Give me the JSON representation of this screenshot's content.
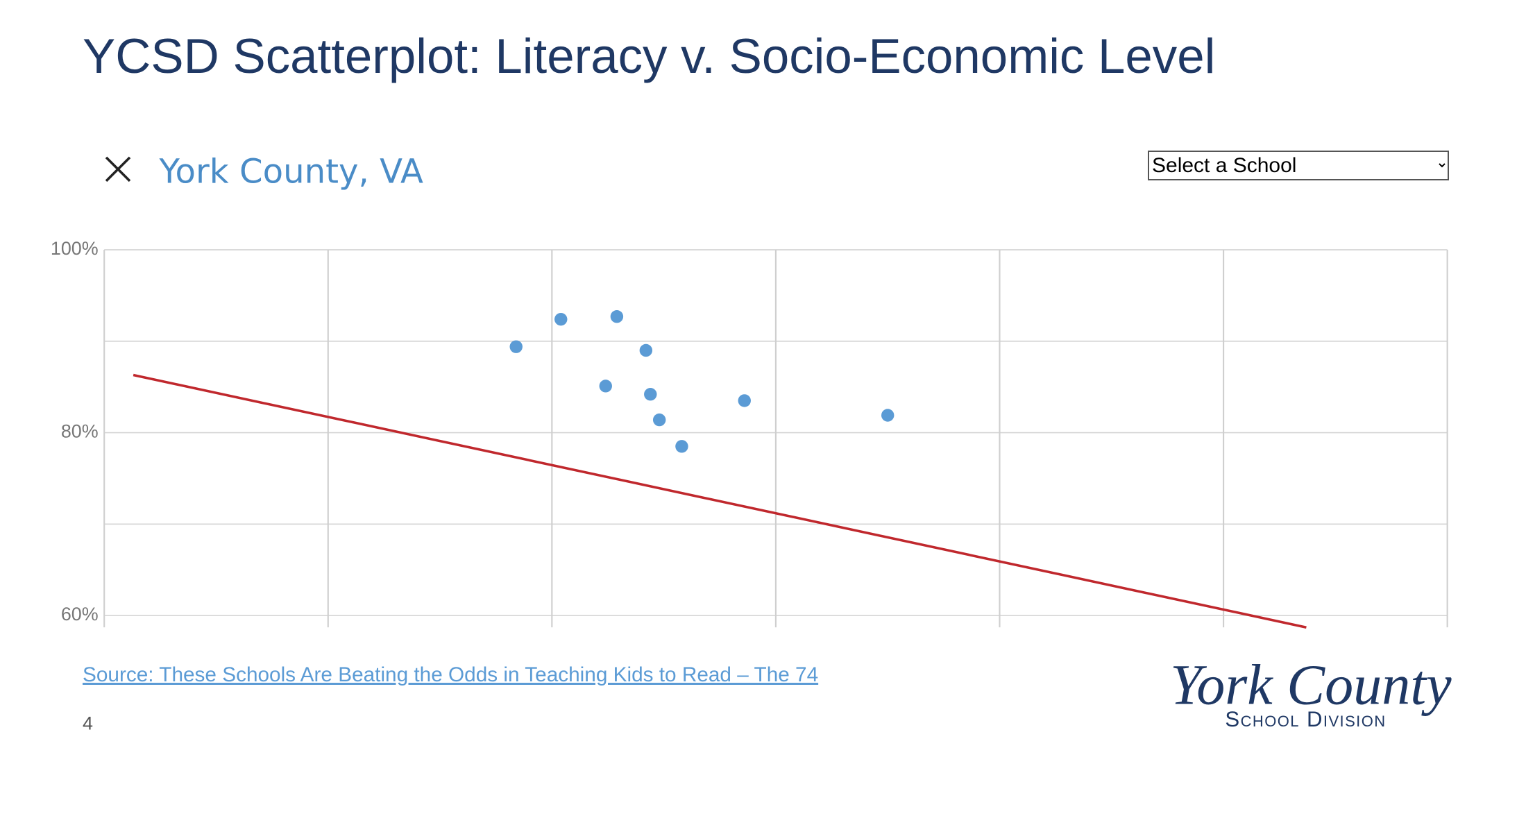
{
  "slide": {
    "title": "YCSD Scatterplot: Literacy v. Socio-Economic Level",
    "source": "Source:  These Schools Are Beating the Odds in Teaching Kids to Read – The 74",
    "page": "4",
    "logo": {
      "script": "York County",
      "caption": "School Division"
    },
    "select": "Select a School"
  },
  "chart_data": {
    "type": "scatter",
    "title": "York County, VA",
    "x": [
      1.84,
      2.04,
      2.29,
      2.42,
      2.24,
      2.44,
      2.48,
      2.58,
      2.86,
      3.5
    ],
    "values": [
      89.4,
      92.4,
      92.7,
      89.0,
      85.1,
      84.2,
      81.4,
      78.5,
      83.5,
      81.9
    ],
    "color": "#5b9bd5",
    "trendline": {
      "x": [
        0.13,
        5.37
      ],
      "y": [
        86.3,
        58.7
      ],
      "color": "#c0282d"
    },
    "xlim": [
      0,
      6
    ],
    "xticks": [
      0,
      1,
      2,
      3,
      4,
      5,
      6
    ],
    "ylim": [
      60,
      100
    ],
    "yticks": [
      {
        "value": 60,
        "label": "60%"
      },
      {
        "value": 80,
        "label": "80%"
      },
      {
        "value": 100,
        "label": "100%"
      }
    ],
    "ygrid": [
      60,
      70,
      80,
      90,
      100
    ],
    "grid": true
  }
}
